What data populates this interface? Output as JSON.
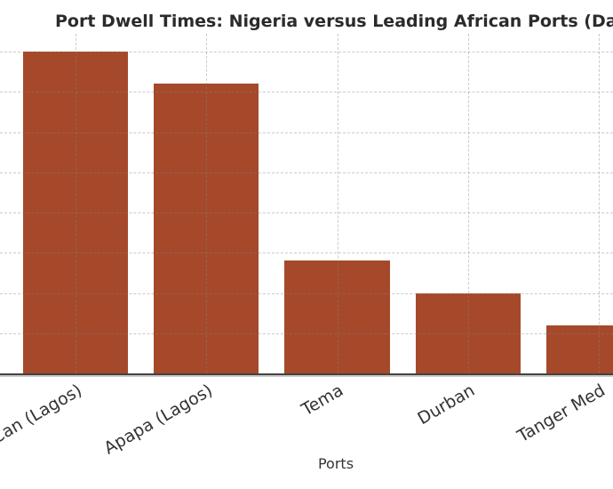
{
  "chart_data": {
    "type": "bar",
    "title": "Port Dwell Times: Nigeria versus Leading African Ports (Days)",
    "categories": [
      "Tin Can (Lagos)",
      "Apapa (Lagos)",
      "Tema",
      "Durban",
      "Tanger Med"
    ],
    "values": [
      20,
      18,
      7,
      5,
      3
    ],
    "xlabel": "Ports",
    "ylabel": "",
    "ylim": [
      0,
      21
    ],
    "ytick_interval": 2.5,
    "grid": true,
    "grid_style": "dashed",
    "legend": false,
    "bar_color": "#a6492a",
    "axis_line_color": "#424242",
    "text_color": "#333333",
    "title_color": "#2b2b2b",
    "note": "figure cropped at left and right edges"
  }
}
